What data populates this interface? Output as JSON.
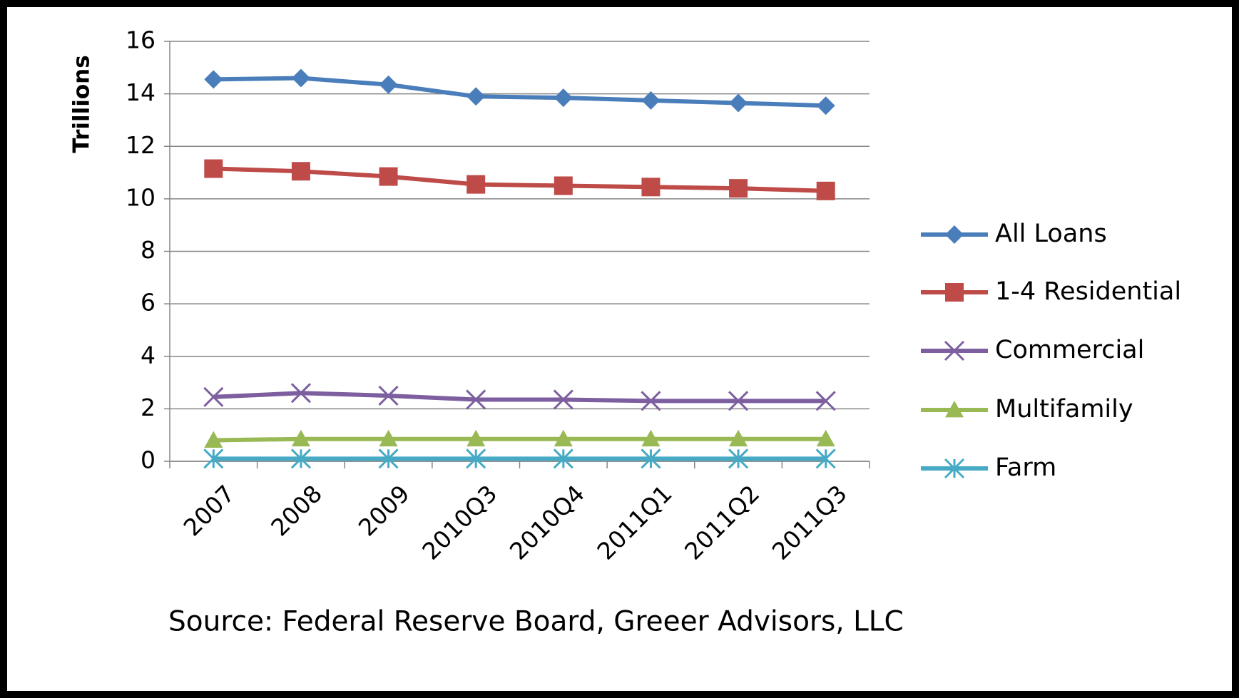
{
  "chart_data": {
    "type": "line",
    "y_label": "Trillions",
    "note": "Source: Federal Reserve Board, Greeer Advisors, LLC",
    "categories": [
      "2007",
      "2008",
      "2009",
      "2010Q3",
      "2010Q4",
      "2011Q1",
      "2011Q2",
      "2011Q3"
    ],
    "ylim": [
      0,
      16
    ],
    "yticks": [
      0,
      2,
      4,
      6,
      8,
      10,
      12,
      14,
      16
    ],
    "grid": true,
    "legend": "right",
    "series": [
      {
        "name": "All Loans",
        "color": "#4a7ebb",
        "marker": "diamond",
        "values": [
          14.55,
          14.6,
          14.35,
          13.9,
          13.85,
          13.75,
          13.65,
          13.55
        ]
      },
      {
        "name": "1-4 Residential",
        "color": "#be4b48",
        "marker": "square",
        "values": [
          11.15,
          11.05,
          10.85,
          10.55,
          10.5,
          10.45,
          10.4,
          10.3
        ]
      },
      {
        "name": "Commercial",
        "color": "#7d5fa0",
        "marker": "x",
        "values": [
          2.45,
          2.6,
          2.5,
          2.35,
          2.35,
          2.3,
          2.3,
          2.3
        ]
      },
      {
        "name": "Multifamily",
        "color": "#98b954",
        "marker": "triangle",
        "values": [
          0.8,
          0.85,
          0.85,
          0.85,
          0.85,
          0.85,
          0.85,
          0.85
        ]
      },
      {
        "name": "Farm",
        "color": "#46aac5",
        "marker": "star",
        "values": [
          0.1,
          0.1,
          0.1,
          0.1,
          0.1,
          0.1,
          0.1,
          0.1
        ]
      }
    ]
  }
}
